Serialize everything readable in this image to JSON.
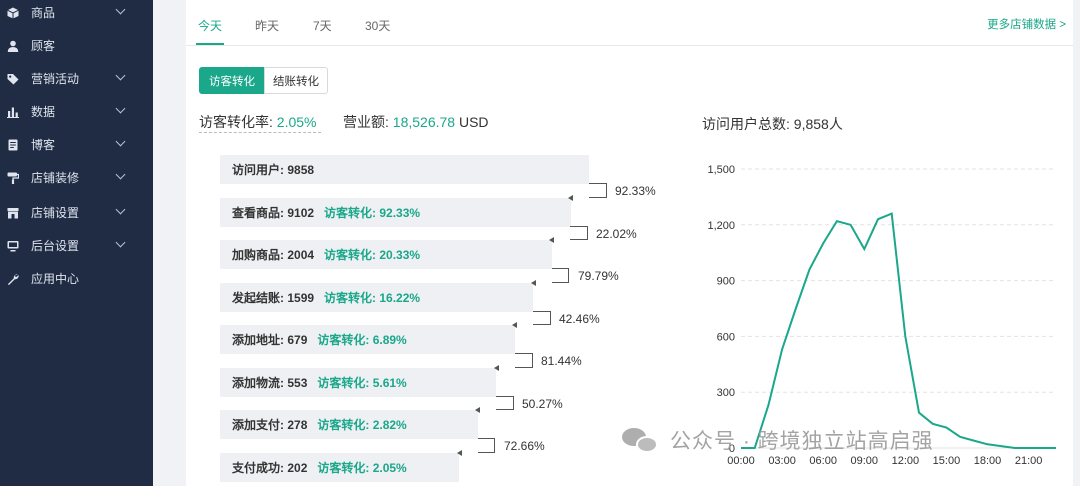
{
  "sidebar": {
    "items": [
      {
        "label": "商品",
        "icon": "box-icon",
        "has_submenu": true
      },
      {
        "label": "顾客",
        "icon": "user-icon",
        "has_submenu": false
      },
      {
        "label": "营销活动",
        "icon": "tag-icon",
        "has_submenu": true
      },
      {
        "label": "数据",
        "icon": "bar-chart-icon",
        "has_submenu": true
      },
      {
        "label": "博客",
        "icon": "document-icon",
        "has_submenu": true
      },
      {
        "label": "店铺装修",
        "icon": "paint-roller-icon",
        "has_submenu": true
      },
      {
        "label": "店铺设置",
        "icon": "store-icon",
        "has_submenu": true
      },
      {
        "label": "后台设置",
        "icon": "monitor-icon",
        "has_submenu": true
      },
      {
        "label": "应用中心",
        "icon": "wrench-icon",
        "has_submenu": false
      }
    ]
  },
  "tabs": [
    {
      "label": "今天",
      "active": true
    },
    {
      "label": "昨天",
      "active": false
    },
    {
      "label": "7天",
      "active": false
    },
    {
      "label": "30天",
      "active": false
    }
  ],
  "more_link": "更多店铺数据 >",
  "toggle": {
    "visitor_label": "访客转化",
    "checkout_label": "结账转化",
    "selected": "访客转化"
  },
  "metrics": {
    "rate_label": "访客转化率:",
    "rate_value": "2.05%",
    "revenue_label": "营业额:",
    "revenue_value": "18,526.78",
    "revenue_unit": "USD",
    "visitors_label": "访问用户总数:",
    "visitors_value": "9,858人"
  },
  "funnel": {
    "steps": [
      {
        "label": "访问用户:",
        "count": "9858",
        "conversion": ""
      },
      {
        "label": "查看商品:",
        "count": "9102",
        "conversion": "访客转化: 92.33%"
      },
      {
        "label": "加购商品:",
        "count": "2004",
        "conversion": "访客转化: 20.33%"
      },
      {
        "label": "发起结账:",
        "count": "1599",
        "conversion": "访客转化: 16.22%"
      },
      {
        "label": "添加地址:",
        "count": "679",
        "conversion": "访客转化: 6.89%"
      },
      {
        "label": "添加物流:",
        "count": "553",
        "conversion": "访客转化: 5.61%"
      },
      {
        "label": "添加支付:",
        "count": "278",
        "conversion": "访客转化: 2.82%"
      },
      {
        "label": "支付成功:",
        "count": "202",
        "conversion": "访客转化: 2.05%"
      }
    ],
    "step_rates": [
      "92.33%",
      "22.02%",
      "79.79%",
      "42.46%",
      "81.44%",
      "50.27%",
      "72.66%"
    ]
  },
  "chart_data": {
    "type": "line",
    "x": [
      "00:00",
      "01:00",
      "02:00",
      "03:00",
      "04:00",
      "05:00",
      "06:00",
      "07:00",
      "08:00",
      "09:00",
      "10:00",
      "11:00",
      "12:00",
      "13:00",
      "14:00",
      "15:00",
      "16:00",
      "17:00",
      "18:00",
      "19:00",
      "20:00",
      "21:00",
      "22:00",
      "23:00"
    ],
    "xticks": [
      "00:00",
      "03:00",
      "06:00",
      "09:00",
      "12:00",
      "15:00",
      "18:00",
      "21:00"
    ],
    "yticks": [
      "0",
      "300",
      "600",
      "900",
      "1,200",
      "1,500"
    ],
    "ylim": [
      0,
      1500
    ],
    "series": [
      {
        "values": [
          0,
          0,
          230,
          530,
          750,
          960,
          1100,
          1220,
          1200,
          1070,
          1230,
          1260,
          600,
          190,
          130,
          110,
          60,
          40,
          20,
          10,
          0,
          0,
          0,
          0
        ]
      }
    ],
    "color": "#1aa78a",
    "grid": true
  },
  "watermark": "公众号 · 跨境独立站高启强"
}
